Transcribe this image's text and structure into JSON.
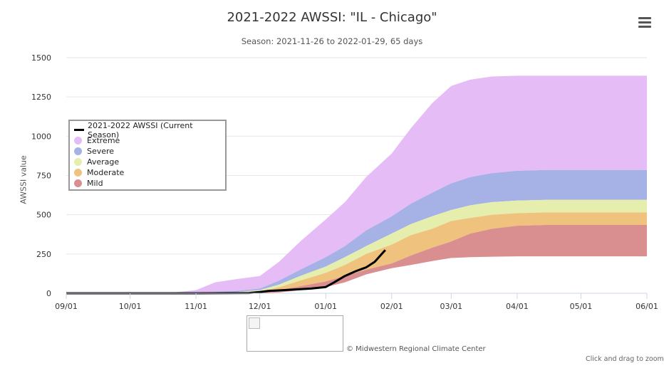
{
  "header": {
    "title": "2021-2022 AWSSI: \"IL - Chicago\"",
    "subtitle": "Season: 2021-11-26 to 2022-01-29, 65 days"
  },
  "menu": {
    "icon": "hamburger-menu-icon"
  },
  "footer": {
    "credit": "© Midwestern Regional Climate Center",
    "zoom_hint": "Click and drag to zoom"
  },
  "chart_data": {
    "type": "area",
    "ylabel": "AWSSI value",
    "ylim": [
      0,
      1500
    ],
    "yticks": [
      "0",
      "250",
      "500",
      "750",
      "1000",
      "1250",
      "1500"
    ],
    "x_tick_labels": [
      "09/01",
      "10/01",
      "11/01",
      "12/01",
      "01/01",
      "02/01",
      "03/01",
      "04/01",
      "05/01",
      "06/01"
    ],
    "x_tick_dates": [
      "2021-09-01",
      "2021-10-01",
      "2021-11-01",
      "2021-12-01",
      "2022-01-01",
      "2022-02-01",
      "2022-03-01",
      "2022-04-01",
      "2022-05-01",
      "2022-06-01"
    ],
    "grid": true,
    "legend_position": "left",
    "legend": [
      {
        "label": "2021-2022 AWSSI (Current Season)",
        "color": "#000000",
        "kind": "line"
      },
      {
        "label": "Extreme",
        "color": "#e6bcf7",
        "kind": "area"
      },
      {
        "label": "Severe",
        "color": "#a6b2e6",
        "kind": "area"
      },
      {
        "label": "Average",
        "color": "#e6eeae",
        "kind": "area"
      },
      {
        "label": "Moderate",
        "color": "#efc27e",
        "kind": "area"
      },
      {
        "label": "Mild",
        "color": "#d98f8f",
        "kind": "area"
      }
    ],
    "x": [
      "2021-09-01",
      "2021-10-01",
      "2021-10-20",
      "2021-11-01",
      "2021-11-10",
      "2021-11-20",
      "2021-12-01",
      "2021-12-10",
      "2021-12-20",
      "2022-01-01",
      "2022-01-10",
      "2022-01-20",
      "2022-02-01",
      "2022-02-10",
      "2022-02-20",
      "2022-03-01",
      "2022-03-10",
      "2022-03-20",
      "2022-04-01",
      "2022-04-15",
      "2022-05-01",
      "2022-05-15",
      "2022-06-01"
    ],
    "series": [
      {
        "name": "Extreme",
        "values": [
          0,
          0,
          3,
          20,
          70,
          90,
          110,
          200,
          330,
          470,
          580,
          740,
          890,
          1050,
          1210,
          1320,
          1360,
          1380,
          1385,
          1385,
          1385,
          1385,
          1385
        ]
      },
      {
        "name": "Severe",
        "values": [
          0,
          0,
          0,
          0,
          8,
          15,
          30,
          80,
          150,
          230,
          300,
          400,
          490,
          570,
          640,
          700,
          740,
          765,
          780,
          785,
          785,
          785,
          785
        ]
      },
      {
        "name": "Average",
        "values": [
          0,
          0,
          0,
          0,
          4,
          8,
          20,
          55,
          110,
          170,
          230,
          300,
          380,
          440,
          490,
          530,
          560,
          580,
          590,
          595,
          595,
          595,
          595
        ]
      },
      {
        "name": "Moderate",
        "values": [
          0,
          0,
          0,
          0,
          2,
          5,
          12,
          38,
          80,
          130,
          180,
          250,
          310,
          370,
          410,
          460,
          480,
          500,
          510,
          515,
          515,
          515,
          515
        ]
      },
      {
        "name": "Mild",
        "values": [
          0,
          0,
          0,
          0,
          0,
          2,
          5,
          20,
          45,
          75,
          110,
          150,
          190,
          240,
          290,
          330,
          380,
          410,
          430,
          435,
          435,
          435,
          435
        ]
      },
      {
        "name": "Mild (lower bound)",
        "values": [
          0,
          0,
          0,
          0,
          0,
          0,
          0,
          5,
          20,
          40,
          70,
          120,
          160,
          180,
          205,
          225,
          230,
          233,
          235,
          235,
          235,
          235,
          235
        ]
      }
    ],
    "current_season": {
      "name": "2021-2022 AWSSI (Current Season)",
      "x": [
        "2021-09-01",
        "2021-11-01",
        "2021-11-26",
        "2021-12-01",
        "2021-12-05",
        "2021-12-15",
        "2021-12-25",
        "2022-01-01",
        "2022-01-05",
        "2022-01-10",
        "2022-01-15",
        "2022-01-20",
        "2022-01-24",
        "2022-01-29"
      ],
      "values": [
        0,
        0,
        2,
        8,
        15,
        22,
        30,
        40,
        70,
        110,
        140,
        165,
        200,
        275
      ]
    }
  }
}
